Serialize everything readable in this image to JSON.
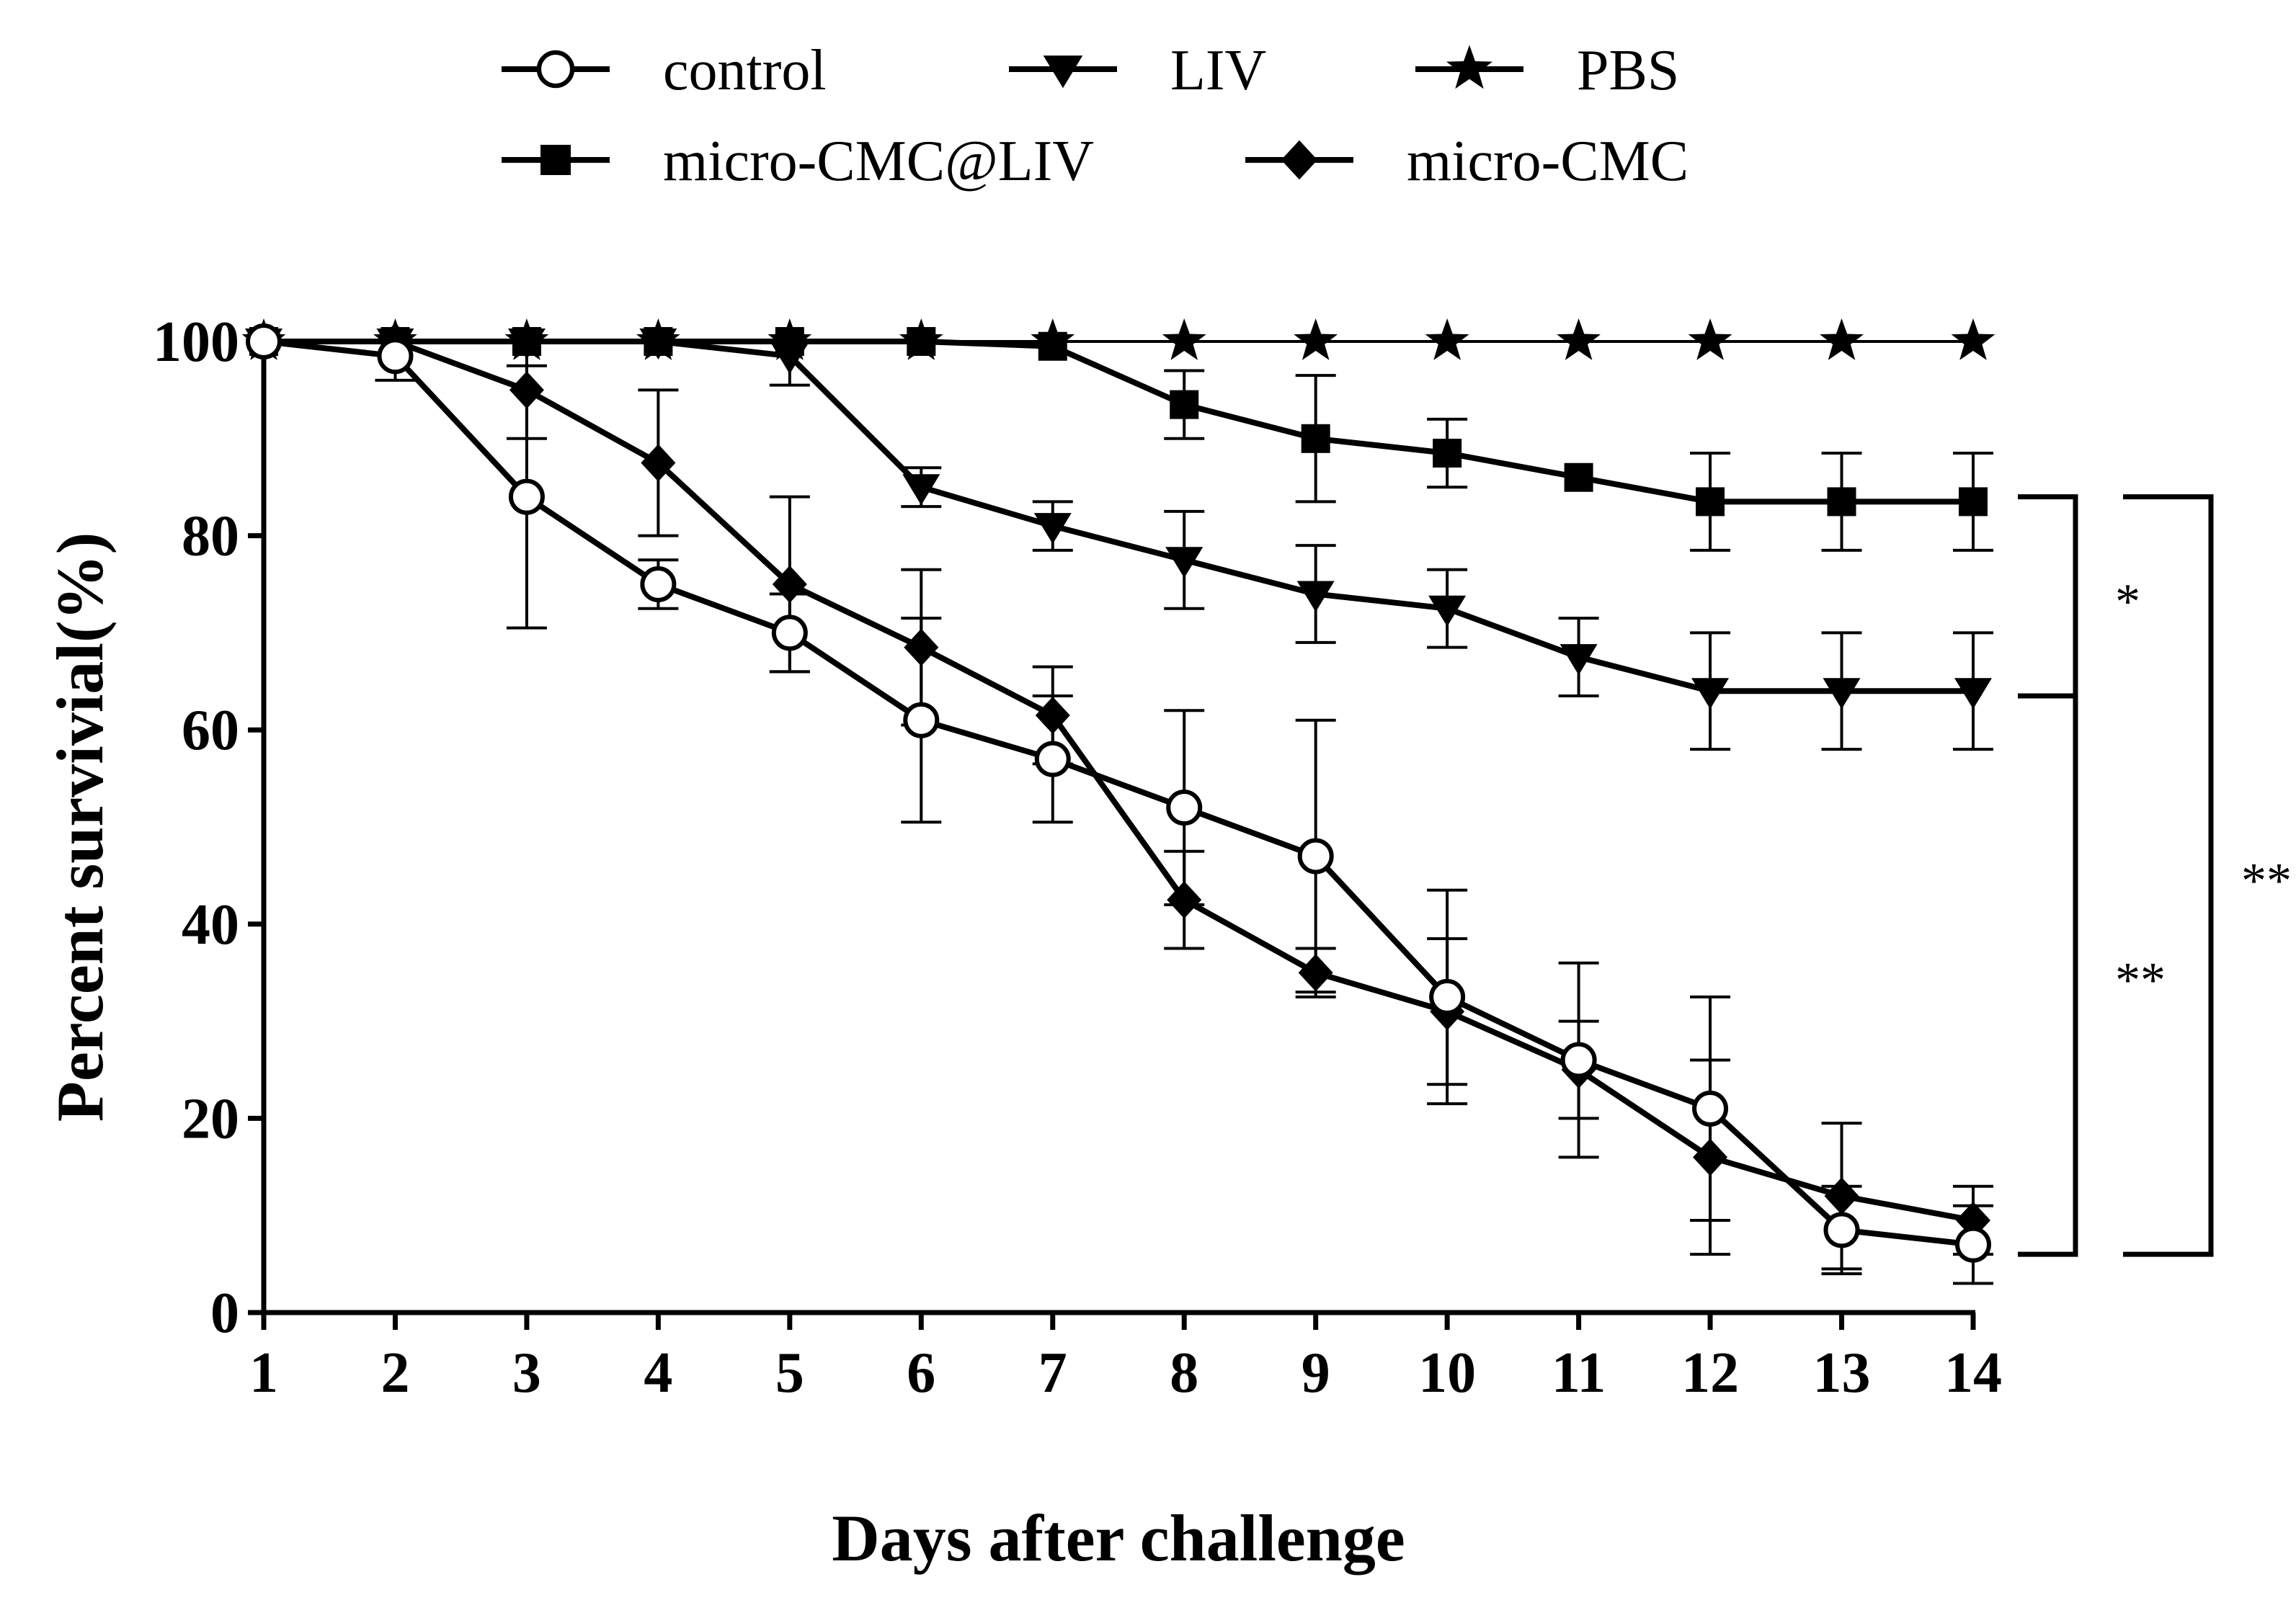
{
  "chart_data": {
    "type": "line",
    "title": "",
    "xlabel": "Days after challenge",
    "ylabel": "Percent survivial(%)",
    "x": [
      1,
      2,
      3,
      4,
      5,
      6,
      7,
      8,
      9,
      10,
      11,
      12,
      13,
      14
    ],
    "xlim": [
      1,
      14
    ],
    "ylim": [
      0,
      100
    ],
    "yticks": [
      0,
      20,
      40,
      60,
      80,
      100
    ],
    "grid": false,
    "legend_position": "top",
    "series": [
      {
        "name": "control",
        "marker": "open-circle",
        "values": [
          100,
          98.5,
          84,
          75,
          70,
          61,
          57,
          52,
          47,
          32.5,
          26,
          21,
          8.5,
          7
        ],
        "error": [
          0,
          2.5,
          13.5,
          2.5,
          4,
          10.5,
          6.5,
          10,
          14,
          11,
          10,
          11.5,
          4.5,
          4
        ]
      },
      {
        "name": "LIV",
        "marker": "filled-triangle-down",
        "values": [
          100,
          100,
          100,
          100,
          98.5,
          85,
          81,
          77.5,
          74,
          72.5,
          67.5,
          64,
          64,
          64
        ],
        "error": [
          0,
          0,
          0,
          0,
          3,
          2,
          2.5,
          5,
          5,
          4,
          4,
          6,
          6,
          6
        ]
      },
      {
        "name": "PBS",
        "marker": "filled-star",
        "values": [
          100,
          100,
          100,
          100,
          100,
          100,
          100,
          100,
          100,
          100,
          100,
          100,
          100,
          100
        ],
        "error": [
          0,
          0,
          0,
          0,
          0,
          0,
          0,
          0,
          0,
          0,
          0,
          0,
          0,
          0
        ]
      },
      {
        "name": "micro-CMC@LIV",
        "marker": "filled-square",
        "values": [
          100,
          100,
          100,
          100,
          100,
          100,
          99.5,
          93.5,
          90,
          88.5,
          86,
          83.5,
          83.5,
          83.5
        ],
        "error": [
          0,
          0,
          0,
          0,
          0,
          0,
          0,
          3.5,
          6.5,
          3.5,
          0,
          5,
          5,
          5
        ]
      },
      {
        "name": "micro-CMC",
        "marker": "filled-diamond",
        "values": [
          100,
          100,
          95,
          87.5,
          75,
          68.5,
          61.5,
          42.5,
          35,
          31,
          25,
          16,
          12,
          9.5
        ],
        "error": [
          0,
          0,
          5,
          7.5,
          9,
          8,
          5,
          5,
          2.5,
          7.5,
          5,
          10,
          7.5,
          3.5
        ]
      }
    ],
    "annotations": [
      {
        "label": "*",
        "from_series": "micro-CMC@LIV",
        "to_series": "LIV",
        "y_from": 84,
        "y_to": 63.5
      },
      {
        "label": "**",
        "from_series": "LIV",
        "to_series": "control",
        "y_from": 63.5,
        "y_to": 6
      },
      {
        "label": "**",
        "from_series": "micro-CMC@LIV",
        "to_series": "control",
        "y_from": 84,
        "y_to": 6
      }
    ]
  }
}
